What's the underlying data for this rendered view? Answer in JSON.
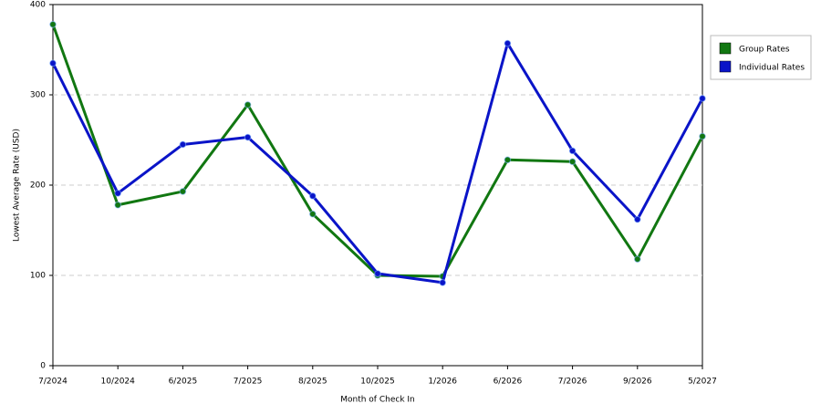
{
  "chart_data": {
    "type": "line",
    "x_label": "Month of Check In",
    "y_label": "Lowest Average Rate (USD)",
    "categories": [
      "7/2024",
      "10/2024",
      "6/2025",
      "7/2025",
      "8/2025",
      "10/2025",
      "1/2026",
      "6/2026",
      "7/2026",
      "9/2026",
      "5/2027"
    ],
    "series": [
      {
        "name": "Group Rates",
        "color": "#117711",
        "values": [
          378,
          178,
          193,
          289,
          168,
          100,
          99,
          228,
          226,
          118,
          254
        ]
      },
      {
        "name": "Individual Rates",
        "color": "#0a14c8",
        "values": [
          335,
          191,
          245,
          253,
          188,
          102,
          92,
          357,
          238,
          162,
          296
        ]
      }
    ],
    "ylim": [
      0,
      400
    ],
    "yticks": [
      0,
      100,
      200,
      300,
      400
    ],
    "grid": true,
    "legend": "right"
  }
}
